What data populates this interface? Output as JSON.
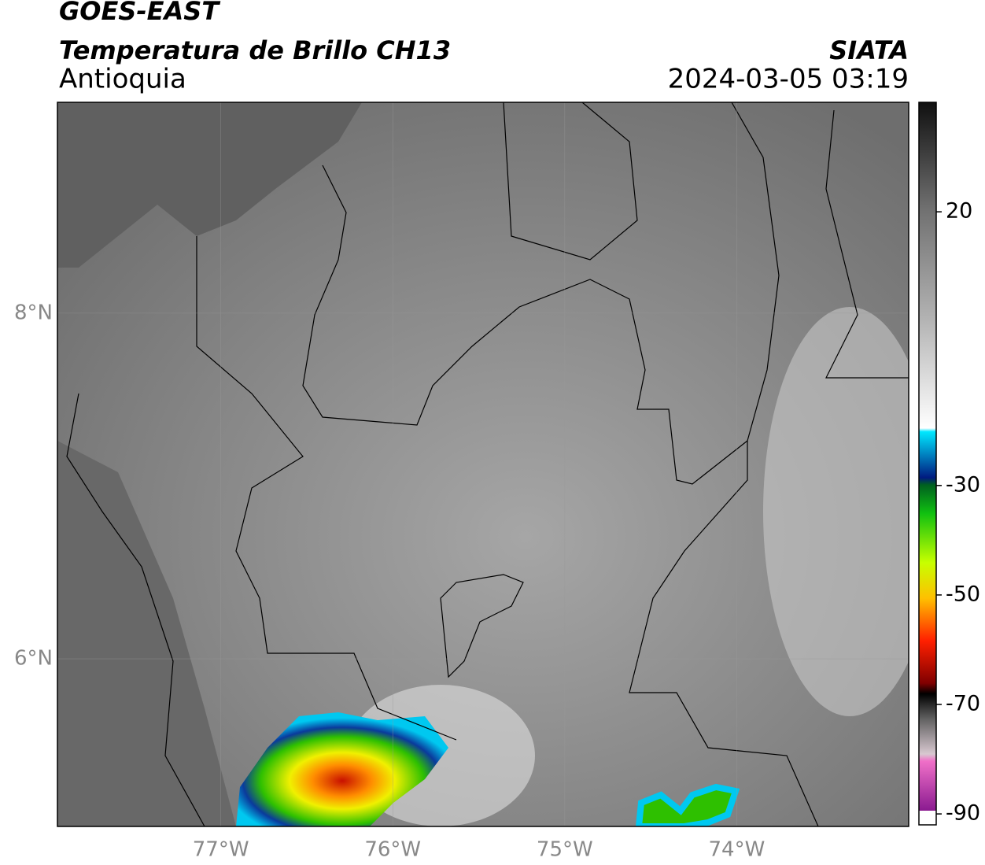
{
  "header": {
    "satellite": "GOES-EAST",
    "product": "Temperatura de Brillo CH13",
    "region": "Antioquia",
    "source": "SIATA",
    "datetime": "2024-03-05 03:19"
  },
  "map": {
    "xlim": [
      -77.95,
      -73
    ],
    "ylim": [
      5.03,
      9.22
    ],
    "xticks": [
      {
        "value": -77,
        "label": "77°W"
      },
      {
        "value": -76,
        "label": "76°W"
      },
      {
        "value": -75,
        "label": "75°W"
      },
      {
        "value": -74,
        "label": "74°W"
      }
    ],
    "yticks": [
      {
        "value": 8,
        "label": "8°N"
      },
      {
        "value": 6,
        "label": "6°N"
      }
    ]
  },
  "colorbar": {
    "lim": [
      -92,
      40
    ],
    "ticks": [
      20,
      -30,
      -50,
      -70,
      -90
    ]
  }
}
